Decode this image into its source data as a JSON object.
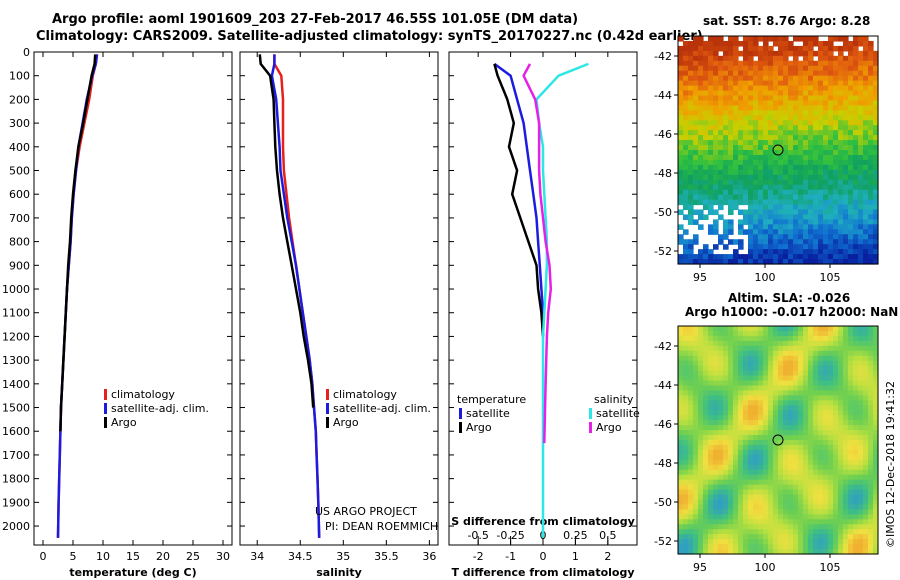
{
  "title": {
    "line1": "Argo profile: aoml 1901609_203 27-Feb-2017 46.55S 101.05E (DM data)",
    "line2": "Climatology: CARS2009. Satellite-adjusted climatology: synTS_20170227.nc (0.42d earlier)"
  },
  "colors": {
    "climatology": "#e8201c",
    "satellite": "#1c1ce0",
    "argo": "#000000",
    "sat_salinity": "#2de6e6",
    "argo_salinity": "#e620e6"
  },
  "depth_axis": {
    "ylim": [
      2080,
      0
    ],
    "ticks": [
      0,
      100,
      200,
      300,
      400,
      500,
      600,
      700,
      800,
      900,
      1000,
      1100,
      1200,
      1300,
      1400,
      1500,
      1600,
      1700,
      1800,
      1900,
      2000
    ],
    "tick_labels": [
      "0",
      "100",
      "200",
      "300",
      "400",
      "500",
      "600",
      "700",
      "800",
      "900",
      "1000",
      "1100",
      "1200",
      "1300",
      "1400",
      "1500",
      "1600",
      "1700",
      "1800",
      "1900",
      "2000"
    ]
  },
  "credits": {
    "project": "US ARGO PROJECT",
    "pi": "PI: DEAN ROEMMICH",
    "imos": "©IMOS 12-Dec-2018 19:41:32"
  },
  "chart_data": [
    {
      "id": "temperature",
      "type": "line",
      "xlabel": "temperature (deg C)",
      "xlim": [
        -1.5,
        31.5
      ],
      "xticks": [
        0,
        5,
        10,
        15,
        20,
        25,
        30
      ],
      "xtick_labels": [
        "0",
        "5",
        "10",
        "15",
        "20",
        "25",
        "30"
      ],
      "legend": [
        "climatology",
        "satellite-adj. clim.",
        "Argo"
      ],
      "legend_position": "lower-right",
      "series": [
        {
          "name": "climatology",
          "color_key": "climatology",
          "x": [
            9.0,
            8.8,
            8.3,
            7.7,
            6.9,
            6.1,
            5.5,
            5.1,
            4.8,
            4.6,
            4.3,
            4.0,
            3.8,
            3.6,
            3.4,
            3.2,
            3.0,
            2.9,
            2.8,
            2.7,
            2.6,
            2.5
          ],
          "y": [
            10,
            50,
            100,
            200,
            300,
            400,
            500,
            600,
            700,
            800,
            900,
            1000,
            1100,
            1200,
            1300,
            1400,
            1500,
            1600,
            1700,
            1800,
            1900,
            2050
          ]
        },
        {
          "name": "satellite-adj. clim.",
          "color_key": "satellite",
          "x": [
            9.0,
            8.8,
            8.2,
            7.3,
            6.6,
            5.9,
            5.5,
            5.1,
            4.8,
            4.6,
            4.3,
            4.0,
            3.8,
            3.6,
            3.4,
            3.2,
            3.0,
            2.9,
            2.8,
            2.7,
            2.6,
            2.5
          ],
          "y": [
            10,
            50,
            100,
            200,
            300,
            400,
            500,
            600,
            700,
            800,
            900,
            1000,
            1100,
            1200,
            1300,
            1400,
            1500,
            1600,
            1700,
            1800,
            1900,
            2050
          ]
        },
        {
          "name": "Argo",
          "color_key": "argo",
          "x": [
            8.7,
            8.6,
            8.1,
            7.4,
            6.7,
            5.9,
            5.4,
            5.0,
            4.7,
            4.5,
            4.2,
            4.0,
            3.8,
            3.6,
            3.4,
            3.2,
            3.0,
            2.9
          ],
          "y": [
            10,
            50,
            100,
            200,
            300,
            400,
            500,
            600,
            700,
            800,
            900,
            1000,
            1100,
            1200,
            1300,
            1400,
            1500,
            1600
          ]
        }
      ]
    },
    {
      "id": "salinity",
      "type": "line",
      "xlabel": "salinity",
      "xlim": [
        33.8,
        36.1
      ],
      "xticks": [
        34,
        34.5,
        35,
        35.5,
        36
      ],
      "xtick_labels": [
        "34",
        "34.5",
        "35",
        "35.5",
        "36"
      ],
      "legend": [
        "climatology",
        "satellite-adj. clim.",
        "Argo"
      ],
      "legend_position": "lower-center",
      "series": [
        {
          "name": "climatology",
          "color_key": "climatology",
          "x": [
            34.2,
            34.2,
            34.28,
            34.3,
            34.3,
            34.3,
            34.31,
            34.34,
            34.37,
            34.41,
            34.45,
            34.49,
            34.53,
            34.57,
            34.61,
            34.64,
            34.66,
            34.68,
            34.69,
            34.7,
            34.71,
            34.72
          ],
          "y": [
            10,
            50,
            100,
            200,
            300,
            400,
            500,
            600,
            700,
            800,
            900,
            1000,
            1100,
            1200,
            1300,
            1400,
            1500,
            1600,
            1700,
            1800,
            1900,
            2050
          ]
        },
        {
          "name": "satellite-adj. clim.",
          "color_key": "satellite",
          "x": [
            34.2,
            34.2,
            34.17,
            34.22,
            34.24,
            34.26,
            34.27,
            34.31,
            34.35,
            34.4,
            34.45,
            34.49,
            34.53,
            34.57,
            34.61,
            34.64,
            34.66,
            34.68,
            34.69,
            34.7,
            34.71,
            34.72
          ],
          "y": [
            10,
            50,
            100,
            200,
            300,
            400,
            500,
            600,
            700,
            800,
            900,
            1000,
            1100,
            1200,
            1300,
            1400,
            1500,
            1600,
            1700,
            1800,
            1900,
            2050
          ]
        },
        {
          "name": "Argo",
          "color_key": "argo",
          "x": [
            34.03,
            34.04,
            34.15,
            34.19,
            34.2,
            34.21,
            34.23,
            34.26,
            34.3,
            34.35,
            34.4,
            34.45,
            34.5,
            34.54,
            34.59,
            34.63,
            34.65
          ],
          "y": [
            10,
            50,
            100,
            200,
            300,
            400,
            500,
            600,
            700,
            800,
            900,
            1000,
            1100,
            1200,
            1300,
            1400,
            1500
          ]
        }
      ]
    },
    {
      "id": "difference",
      "type": "line",
      "xlabel": "T difference from climatology",
      "top_label": "S difference from climatology",
      "xlim": [
        -2.9,
        2.9
      ],
      "xticks": [
        -2,
        -1,
        0,
        1,
        2
      ],
      "xtick_labels": [
        "-2",
        "-1",
        "0",
        "1",
        "2"
      ],
      "s_ticks": [
        -0.5,
        -0.25,
        0,
        0.25,
        0.5
      ],
      "s_tick_labels": [
        "-0.5",
        "-0.25",
        "0",
        "0.25",
        "0.5"
      ],
      "legend_temperature": {
        "heading": "temperature",
        "items": [
          "satellite",
          "Argo"
        ]
      },
      "legend_salinity": {
        "heading": "salinity",
        "items": [
          "satellite",
          "Argo"
        ]
      },
      "series": [
        {
          "name": "T satellite",
          "color_key": "satellite",
          "x": [
            -1.5,
            -1.0,
            -0.8,
            -0.6,
            -0.5,
            -0.4,
            -0.3,
            -0.2,
            -0.15,
            -0.1,
            -0.05,
            0,
            0
          ],
          "y": [
            50,
            100,
            200,
            300,
            400,
            500,
            600,
            700,
            800,
            900,
            1000,
            1100,
            1200
          ]
        },
        {
          "name": "T Argo",
          "color_key": "argo",
          "x": [
            -1.5,
            -1.4,
            -1.1,
            -0.9,
            -1.05,
            -0.8,
            -0.95,
            -0.7,
            -0.45,
            -0.2,
            -0.15,
            -0.05,
            0
          ],
          "y": [
            50,
            100,
            200,
            300,
            400,
            500,
            600,
            700,
            800,
            900,
            1000,
            1100,
            1200
          ]
        },
        {
          "name": "S satellite",
          "color_key": "sat_salinity",
          "x": [
            0.35,
            0.12,
            -0.05,
            -0.03,
            0,
            0,
            0.01,
            0.02,
            0.03,
            0.03,
            0.02,
            0,
            0,
            0,
            0,
            0
          ],
          "y": [
            50,
            100,
            200,
            300,
            400,
            500,
            600,
            700,
            800,
            900,
            1000,
            1200,
            1400,
            1600,
            1800,
            2050
          ]
        },
        {
          "name": "S Argo",
          "color_key": "argo_salinity",
          "x": [
            -0.1,
            -0.15,
            -0.06,
            -0.03,
            -0.03,
            -0.03,
            -0.02,
            0.0,
            0.02,
            0.05,
            0.06,
            0.04,
            0.03,
            0.02,
            0.01
          ],
          "y": [
            50,
            100,
            200,
            300,
            400,
            500,
            600,
            700,
            800,
            900,
            1000,
            1100,
            1200,
            1400,
            1650
          ]
        }
      ]
    }
  ],
  "maps": {
    "sst": {
      "title": "sat. SST: 8.76 Argo: 8.28",
      "yticks": [
        "-42",
        "-44",
        "-46",
        "-48",
        "-50",
        "-52"
      ],
      "xticks": [
        "95",
        "100",
        "105"
      ],
      "float_marker": "Argo float position"
    },
    "sla": {
      "title_line1": "Altim. SLA: -0.026",
      "title_line2": "Argo h1000: -0.017 h2000: NaN",
      "yticks": [
        "-42",
        "-44",
        "-46",
        "-48",
        "-50",
        "-52"
      ],
      "xticks": [
        "95",
        "100",
        "105"
      ],
      "float_marker": "Argo float position"
    }
  }
}
